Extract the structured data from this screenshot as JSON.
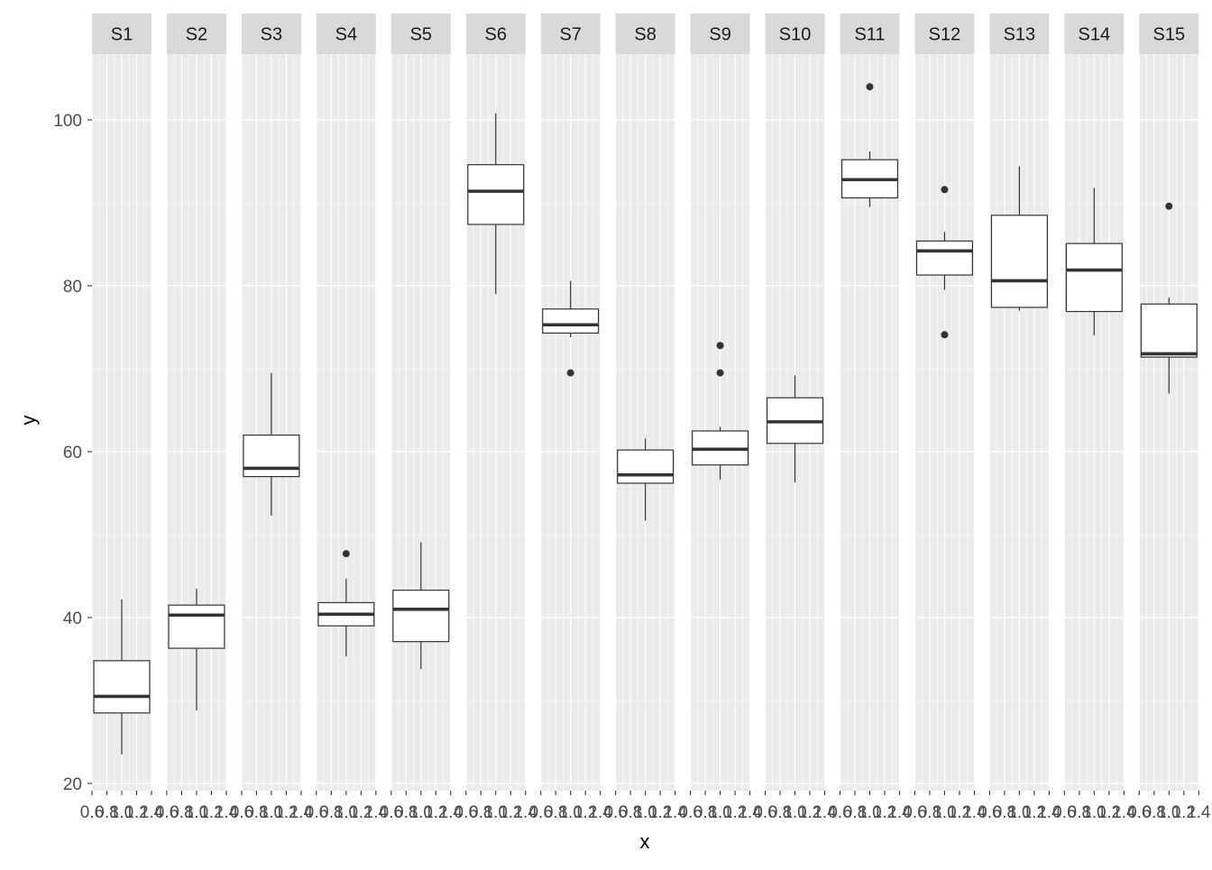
{
  "chart_data": {
    "type": "boxplot",
    "xlabel": "x",
    "ylabel": "y",
    "ylim": [
      20,
      105
    ],
    "y_ticks": [
      20,
      40,
      60,
      80,
      100
    ],
    "x_tick_labels": [
      "0.6",
      "0.8",
      "1.0",
      "1.2",
      "1.4"
    ],
    "xlim": [
      0.6,
      1.4
    ],
    "grid": true,
    "colors": {
      "panel_bg": "#ebebeb",
      "strip_bg": "#d9d9d9",
      "grid_line": "#ffffff",
      "box_fill": "#ffffff",
      "box_stroke": "#333333",
      "text": "#4d4d4d",
      "title_text": "#000000",
      "strip_text": "#1a1a1a"
    },
    "facets": [
      {
        "label": "S1",
        "whisker_low": 23.5,
        "q1": 28.5,
        "median": 30.5,
        "q3": 34.8,
        "whisker_high": 42.2,
        "outliers": []
      },
      {
        "label": "S2",
        "whisker_low": 28.8,
        "q1": 36.3,
        "median": 40.3,
        "q3": 41.5,
        "whisker_high": 43.5,
        "outliers": []
      },
      {
        "label": "S3",
        "whisker_low": 52.3,
        "q1": 57.0,
        "median": 58.0,
        "q3": 62.0,
        "whisker_high": 69.5,
        "outliers": []
      },
      {
        "label": "S4",
        "whisker_low": 35.3,
        "q1": 39.0,
        "median": 40.4,
        "q3": 41.8,
        "whisker_high": 44.7,
        "outliers": [
          47.7
        ]
      },
      {
        "label": "S5",
        "whisker_low": 33.8,
        "q1": 37.1,
        "median": 41.0,
        "q3": 43.3,
        "whisker_high": 49.1,
        "outliers": []
      },
      {
        "label": "S6",
        "whisker_low": 79.0,
        "q1": 87.4,
        "median": 91.4,
        "q3": 94.6,
        "whisker_high": 100.8,
        "outliers": []
      },
      {
        "label": "S7",
        "whisker_low": 73.8,
        "q1": 74.3,
        "median": 75.3,
        "q3": 77.2,
        "whisker_high": 80.6,
        "outliers": [
          69.5
        ]
      },
      {
        "label": "S8",
        "whisker_low": 51.7,
        "q1": 56.2,
        "median": 57.2,
        "q3": 60.2,
        "whisker_high": 61.6,
        "outliers": []
      },
      {
        "label": "S9",
        "whisker_low": 56.6,
        "q1": 58.4,
        "median": 60.3,
        "q3": 62.5,
        "whisker_high": 63.0,
        "outliers": [
          69.5,
          72.8
        ]
      },
      {
        "label": "S10",
        "whisker_low": 56.3,
        "q1": 61.0,
        "median": 63.6,
        "q3": 66.5,
        "whisker_high": 69.2,
        "outliers": []
      },
      {
        "label": "S11",
        "whisker_low": 89.5,
        "q1": 90.6,
        "median": 92.8,
        "q3": 95.2,
        "whisker_high": 96.2,
        "outliers": [
          104.0
        ]
      },
      {
        "label": "S12",
        "whisker_low": 79.5,
        "q1": 81.3,
        "median": 84.2,
        "q3": 85.4,
        "whisker_high": 86.5,
        "outliers": [
          91.6,
          74.1
        ]
      },
      {
        "label": "S13",
        "whisker_low": 77.0,
        "q1": 77.4,
        "median": 80.6,
        "q3": 88.5,
        "whisker_high": 94.4,
        "outliers": []
      },
      {
        "label": "S14",
        "whisker_low": 74.0,
        "q1": 76.9,
        "median": 81.9,
        "q3": 85.1,
        "whisker_high": 91.8,
        "outliers": []
      },
      {
        "label": "S15",
        "whisker_low": 67.0,
        "q1": 71.4,
        "median": 71.8,
        "q3": 77.8,
        "whisker_high": 78.6,
        "outliers": [
          89.6
        ]
      }
    ]
  }
}
